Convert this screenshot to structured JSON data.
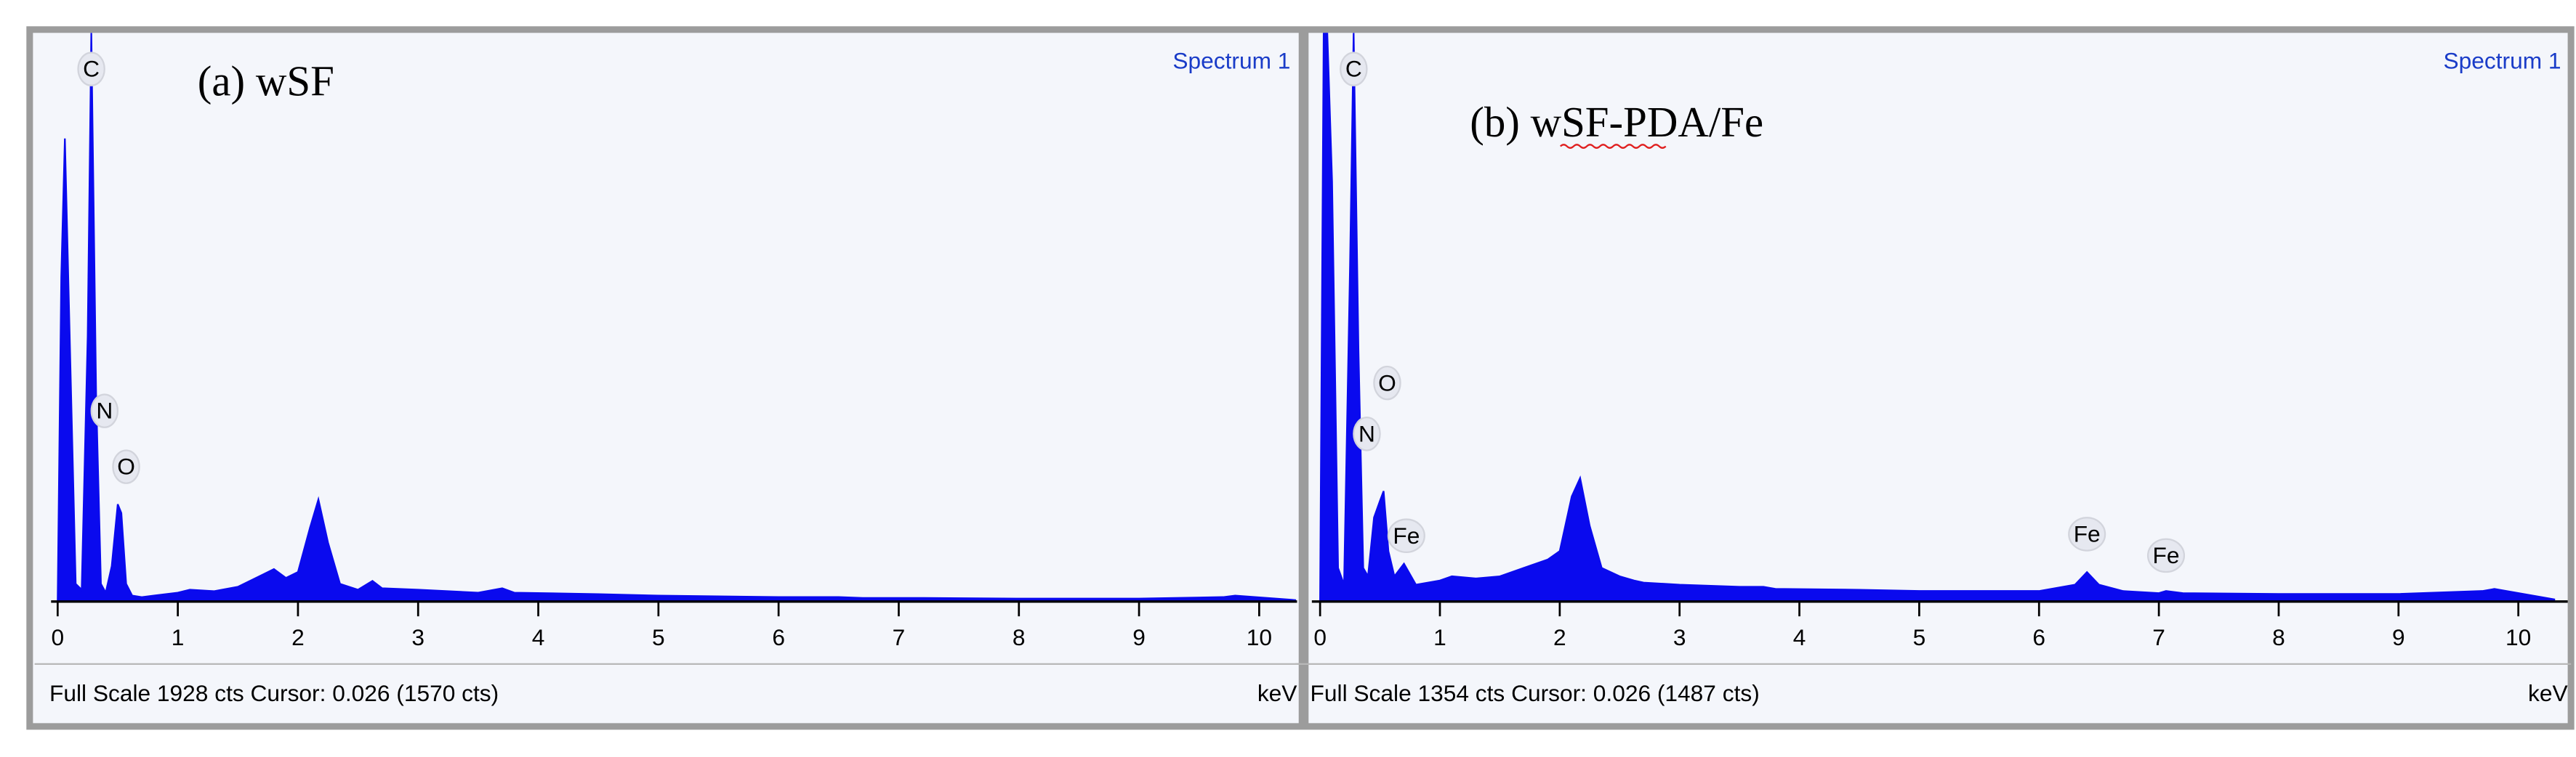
{
  "chart_data": [
    {
      "type": "area",
      "title": "Spectrum 1",
      "annotation": "(a)   wSF",
      "color": "#0a0aee",
      "x": [
        0,
        0.03,
        0.06,
        0.1,
        0.15,
        0.2,
        0.25,
        0.28,
        0.32,
        0.36,
        0.4,
        0.45,
        0.5,
        0.53,
        0.57,
        0.62,
        0.7,
        0.8,
        1.0,
        1.1,
        1.3,
        1.5,
        1.7,
        1.8,
        1.9,
        2.0,
        2.1,
        2.17,
        2.25,
        2.35,
        2.5,
        2.62,
        2.7,
        3.0,
        3.5,
        3.7,
        3.8,
        4.5,
        5,
        6,
        6.3,
        6.4,
        6.5,
        6.7,
        7.0,
        7.06,
        7.2,
        8,
        9,
        9.7,
        9.8,
        10.3
      ],
      "values": [
        0,
        1100,
        1570,
        900,
        60,
        40,
        900,
        1928,
        700,
        60,
        30,
        120,
        330,
        300,
        60,
        20,
        15,
        20,
        30,
        40,
        35,
        50,
        90,
        110,
        80,
        100,
        250,
        346,
        200,
        60,
        40,
        70,
        45,
        40,
        30,
        45,
        30,
        25,
        20,
        15,
        15,
        15,
        15,
        12,
        12,
        12,
        12,
        10,
        10,
        15,
        20,
        5
      ],
      "xlim": [
        0,
        10.3
      ],
      "xticks": [
        0,
        1,
        2,
        3,
        4,
        5,
        6,
        7,
        8,
        9,
        10
      ],
      "ylim": [
        0,
        1928
      ],
      "x_label": "keV",
      "footer": "Full Scale 1928 cts Cursor: 0.026  (1570 cts)",
      "peak_labels": [
        {
          "label": "C",
          "x": 0.28
        },
        {
          "label": "N",
          "x": 0.39
        },
        {
          "label": "O",
          "x": 0.57
        }
      ]
    },
    {
      "type": "area",
      "title": "Spectrum 1",
      "annotation": "(b) wSF-PDA/Fe",
      "color": "#0a0aee",
      "x": [
        0,
        0.03,
        0.06,
        0.1,
        0.15,
        0.2,
        0.25,
        0.28,
        0.32,
        0.36,
        0.4,
        0.45,
        0.5,
        0.53,
        0.57,
        0.62,
        0.7,
        0.8,
        1.0,
        1.1,
        1.3,
        1.5,
        1.7,
        1.8,
        1.9,
        2.0,
        2.1,
        2.17,
        2.25,
        2.35,
        2.5,
        2.62,
        2.7,
        3.0,
        3.5,
        3.7,
        3.8,
        4.5,
        5,
        6,
        6.3,
        6.4,
        6.5,
        6.7,
        7.0,
        7.06,
        7.2,
        8,
        9,
        9.7,
        9.8,
        10.3
      ],
      "values": [
        0,
        1354,
        1354,
        1000,
        80,
        40,
        800,
        1354,
        600,
        80,
        60,
        200,
        240,
        263,
        120,
        60,
        90,
        40,
        50,
        60,
        55,
        60,
        80,
        90,
        100,
        120,
        250,
        294,
        180,
        80,
        60,
        50,
        45,
        40,
        35,
        35,
        30,
        28,
        25,
        25,
        40,
        70,
        40,
        25,
        20,
        25,
        20,
        18,
        18,
        25,
        30,
        5
      ],
      "xlim": [
        0,
        10.3
      ],
      "xticks": [
        0,
        1,
        2,
        3,
        4,
        5,
        6,
        7,
        8,
        9,
        10
      ],
      "ylim": [
        0,
        1354
      ],
      "x_label": "keV",
      "footer": "Full Scale 1354 cts Cursor: 0.026  (1487 cts)",
      "peak_labels": [
        {
          "label": "C",
          "x": 0.28
        },
        {
          "label": "N",
          "x": 0.39
        },
        {
          "label": "O",
          "x": 0.56
        },
        {
          "label": "Fe",
          "x": 0.72
        },
        {
          "label": "Fe",
          "x": 6.4
        },
        {
          "label": "Fe",
          "x": 7.06
        }
      ]
    }
  ]
}
